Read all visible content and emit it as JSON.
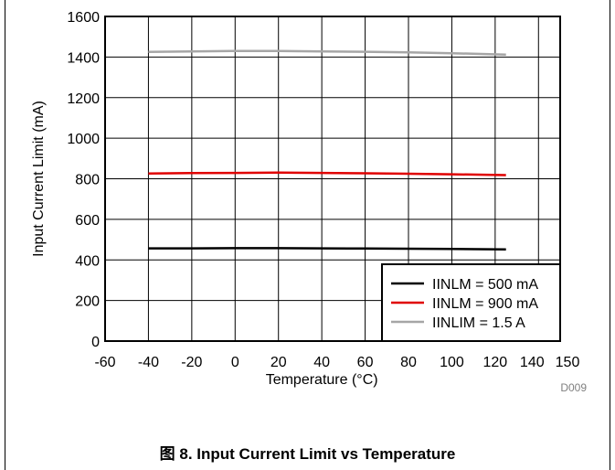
{
  "chart_data": {
    "type": "line",
    "xlabel": "Temperature (°C)",
    "ylabel": "Input Current Limit (mA)",
    "xlim": [
      -60,
      150
    ],
    "ylim": [
      0,
      1600
    ],
    "x_ticks": [
      -60,
      -40,
      -20,
      0,
      20,
      40,
      60,
      80,
      100,
      120,
      140,
      150
    ],
    "x_tick_labels": [
      "-60",
      "-40",
      "-20",
      "0",
      "20",
      "40",
      "60",
      "80",
      "100",
      "120",
      "140",
      "150"
    ],
    "y_ticks": [
      0,
      200,
      400,
      600,
      800,
      1000,
      1200,
      1400,
      1600
    ],
    "y_tick_labels": [
      "0",
      "200",
      "400",
      "600",
      "800",
      "1000",
      "1200",
      "1400",
      "1600"
    ],
    "grid": true,
    "legend_position": "bottom-right",
    "series": [
      {
        "name": "IINLM = 500 mA",
        "color": "#000000",
        "x": [
          -40,
          -20,
          0,
          20,
          40,
          60,
          80,
          100,
          125
        ],
        "y": [
          457,
          457,
          458,
          458,
          457,
          456,
          455,
          454,
          452
        ]
      },
      {
        "name": "IINLM = 900 mA",
        "color": "#e00000",
        "x": [
          -40,
          -20,
          0,
          20,
          40,
          60,
          80,
          100,
          125
        ],
        "y": [
          826,
          828,
          829,
          830,
          829,
          827,
          825,
          822,
          818
        ]
      },
      {
        "name": "IINLIM = 1.5 A",
        "color": "#a6a6a6",
        "x": [
          -40,
          -20,
          0,
          20,
          40,
          60,
          80,
          100,
          125
        ],
        "y": [
          1425,
          1428,
          1430,
          1430,
          1428,
          1426,
          1423,
          1419,
          1412
        ]
      }
    ],
    "annotation": "D009"
  },
  "caption": "图 8. Input Current Limit vs Temperature"
}
